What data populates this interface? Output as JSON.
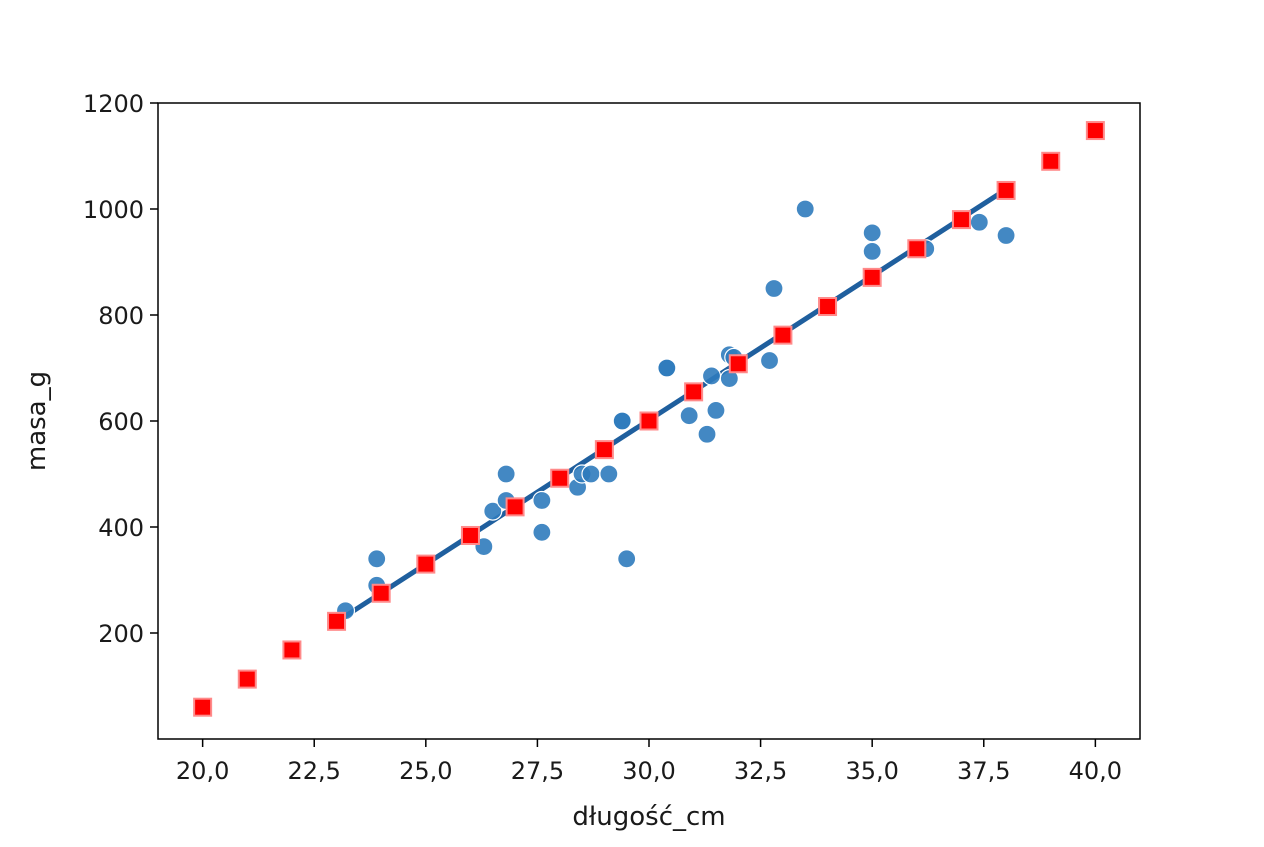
{
  "chart_data": {
    "type": "scatter",
    "title": "",
    "xlabel": "długość_cm",
    "ylabel": "masa_g",
    "xlim": [
      19,
      41
    ],
    "ylim": [
      0,
      1200
    ],
    "x_ticks": [
      20.0,
      22.5,
      25.0,
      27.5,
      30.0,
      32.5,
      35.0,
      37.5,
      40.0
    ],
    "x_tick_labels": [
      "20,0",
      "22,5",
      "25,0",
      "27,5",
      "30,0",
      "32,5",
      "35,0",
      "37,5",
      "40,0"
    ],
    "y_ticks": [
      200,
      400,
      600,
      800,
      1000,
      1200
    ],
    "y_tick_labels": [
      "200",
      "400",
      "600",
      "800",
      "1000",
      "1200"
    ],
    "grid": false,
    "legend": "none",
    "colors": {
      "observed": "#2f7bbd",
      "predicted_fill": "#ff0000",
      "predicted_edge": "#ff8a8a",
      "fit_line": "#1f5f9e"
    },
    "series": [
      {
        "kind": "scatter-circle",
        "points": [
          {
            "x": 23.2,
            "y": 242
          },
          {
            "x": 23.9,
            "y": 290
          },
          {
            "x": 23.9,
            "y": 340
          },
          {
            "x": 26.3,
            "y": 363
          },
          {
            "x": 26.5,
            "y": 430
          },
          {
            "x": 26.8,
            "y": 450
          },
          {
            "x": 26.8,
            "y": 500
          },
          {
            "x": 27.6,
            "y": 390
          },
          {
            "x": 27.6,
            "y": 450
          },
          {
            "x": 28.4,
            "y": 475
          },
          {
            "x": 28.5,
            "y": 500
          },
          {
            "x": 28.7,
            "y": 500
          },
          {
            "x": 29.1,
            "y": 500
          },
          {
            "x": 29.4,
            "y": 600
          },
          {
            "x": 29.4,
            "y": 600
          },
          {
            "x": 29.5,
            "y": 340
          },
          {
            "x": 30.4,
            "y": 700
          },
          {
            "x": 30.4,
            "y": 700
          },
          {
            "x": 30.9,
            "y": 610
          },
          {
            "x": 31.3,
            "y": 575
          },
          {
            "x": 31.4,
            "y": 685
          },
          {
            "x": 31.5,
            "y": 620
          },
          {
            "x": 31.8,
            "y": 680
          },
          {
            "x": 31.8,
            "y": 725
          },
          {
            "x": 31.9,
            "y": 720
          },
          {
            "x": 32.7,
            "y": 714
          },
          {
            "x": 32.8,
            "y": 850
          },
          {
            "x": 33.5,
            "y": 1000
          },
          {
            "x": 35.0,
            "y": 920
          },
          {
            "x": 35.0,
            "y": 955
          },
          {
            "x": 36.2,
            "y": 925
          },
          {
            "x": 37.4,
            "y": 975
          },
          {
            "x": 38.0,
            "y": 950
          }
        ]
      },
      {
        "kind": "scatter-square",
        "points": [
          {
            "x": 20,
            "y": 60
          },
          {
            "x": 21,
            "y": 113
          },
          {
            "x": 22,
            "y": 168
          },
          {
            "x": 23,
            "y": 222
          },
          {
            "x": 24,
            "y": 275
          },
          {
            "x": 25,
            "y": 330
          },
          {
            "x": 26,
            "y": 384
          },
          {
            "x": 27,
            "y": 438
          },
          {
            "x": 28,
            "y": 492
          },
          {
            "x": 29,
            "y": 546
          },
          {
            "x": 30,
            "y": 600
          },
          {
            "x": 31,
            "y": 655
          },
          {
            "x": 32,
            "y": 708
          },
          {
            "x": 33,
            "y": 762
          },
          {
            "x": 34,
            "y": 816
          },
          {
            "x": 35,
            "y": 871
          },
          {
            "x": 36,
            "y": 925
          },
          {
            "x": 37,
            "y": 980
          },
          {
            "x": 38,
            "y": 1035
          },
          {
            "x": 39,
            "y": 1090
          },
          {
            "x": 40,
            "y": 1148
          }
        ]
      },
      {
        "kind": "line",
        "points": [
          {
            "x": 23.2,
            "y": 232
          },
          {
            "x": 38.0,
            "y": 1037
          }
        ]
      }
    ]
  }
}
